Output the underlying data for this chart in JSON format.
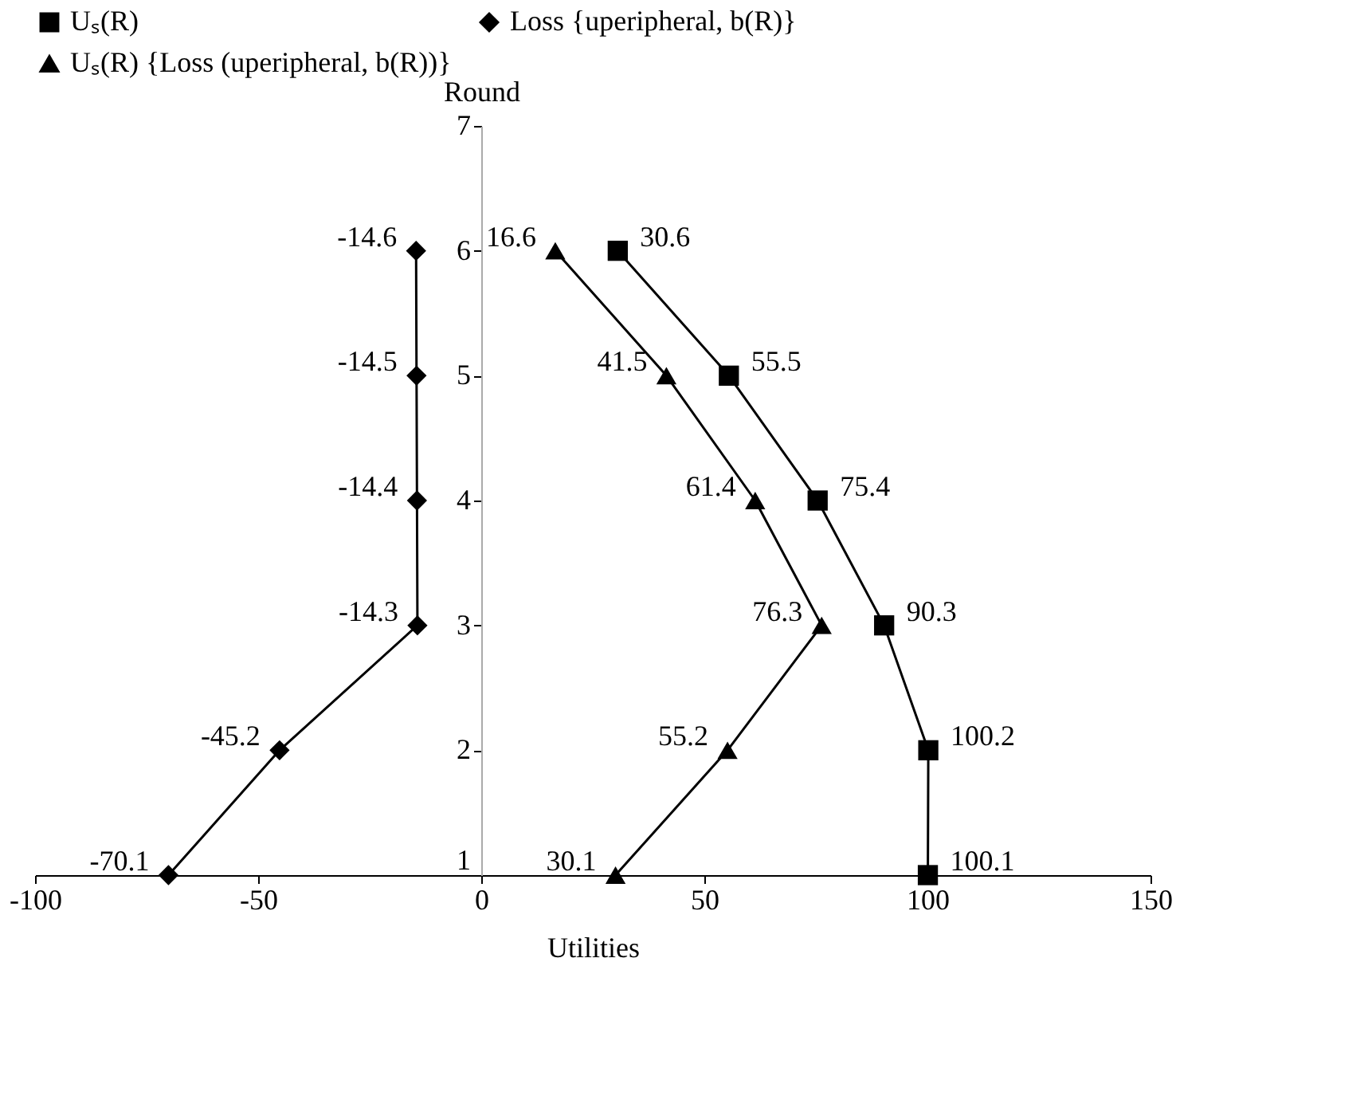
{
  "chart_data": {
    "type": "line",
    "orientation": "horizontal",
    "xlabel": "Utilities",
    "ylabel": "Round",
    "xlim": [
      -100,
      150
    ],
    "xticks": [
      -100,
      -50,
      0,
      50,
      100,
      150
    ],
    "ylim": [
      1,
      7
    ],
    "yticks": [
      1,
      2,
      3,
      4,
      5,
      6,
      7
    ],
    "grid": false,
    "legend": "top left",
    "line_style": "solid",
    "data_labels": true,
    "series": [
      {
        "name": "Uₛ(R)",
        "color": "#000000",
        "marker": "square",
        "x": [
          1,
          2,
          3,
          4,
          5,
          6
        ],
        "values": [
          100.1,
          100.2,
          90.3,
          75.4,
          55.5,
          30.6
        ]
      },
      {
        "name": "Loss {uperipheral, b(R)}",
        "color": "#000000",
        "marker": "diamond",
        "x": [
          1,
          2,
          3,
          4,
          5,
          6
        ],
        "values": [
          -70.1,
          -45.2,
          -14.3,
          -14.4,
          -14.5,
          -14.6
        ]
      },
      {
        "name": "Uₛ(R) {Loss (uperipheral, b(R))}",
        "color": "#000000",
        "marker": "triangle",
        "x": [
          1,
          2,
          3,
          4,
          5,
          6
        ],
        "values": [
          30.1,
          55.2,
          76.3,
          61.4,
          41.5,
          16.6
        ]
      }
    ]
  }
}
